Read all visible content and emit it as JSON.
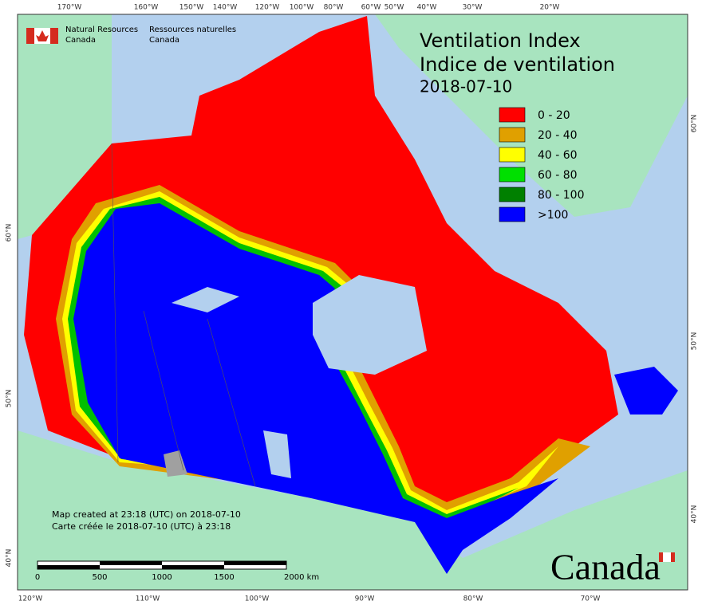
{
  "header": {
    "agency_en": "Natural Resources",
    "agency_en_2": "Canada",
    "agency_fr": "Ressources naturelles",
    "agency_fr_2": "Canada"
  },
  "title": {
    "line1": "Ventilation Index",
    "line2": "Indice de ventilation",
    "date": "2018-07-10"
  },
  "legend": [
    {
      "label": "0 - 20",
      "color": "#ff0000"
    },
    {
      "label": "20 - 40",
      "color": "#e0a000"
    },
    {
      "label": "40 - 60",
      "color": "#ffff00"
    },
    {
      "label": "60 - 80",
      "color": "#00e000"
    },
    {
      "label": "80 - 100",
      "color": "#008000"
    },
    {
      "label": ">100",
      "color": "#0000ff"
    }
  ],
  "graticule": {
    "top": [
      "170°W",
      "160°W",
      "150°W",
      "140°W",
      "120°W",
      "100°W",
      "80°W",
      "60°W",
      "50°W",
      "40°W",
      "30°W",
      "20°W"
    ],
    "bottom": [
      "120°W",
      "110°W",
      "100°W",
      "90°W",
      "80°W",
      "70°W"
    ],
    "left": [
      "60°N",
      "50°N",
      "40°N"
    ],
    "right": [
      "60°N",
      "50°N",
      "40°N"
    ]
  },
  "credits": {
    "en": "Map created at 23:18 (UTC) on 2018-07-10",
    "fr": "Carte créée le 2018-07-10 (UTC) à 23:18"
  },
  "scale_bar": [
    "0",
    "500",
    "1000",
    "1500",
    "2000 km"
  ],
  "wordmark": "Canada"
}
